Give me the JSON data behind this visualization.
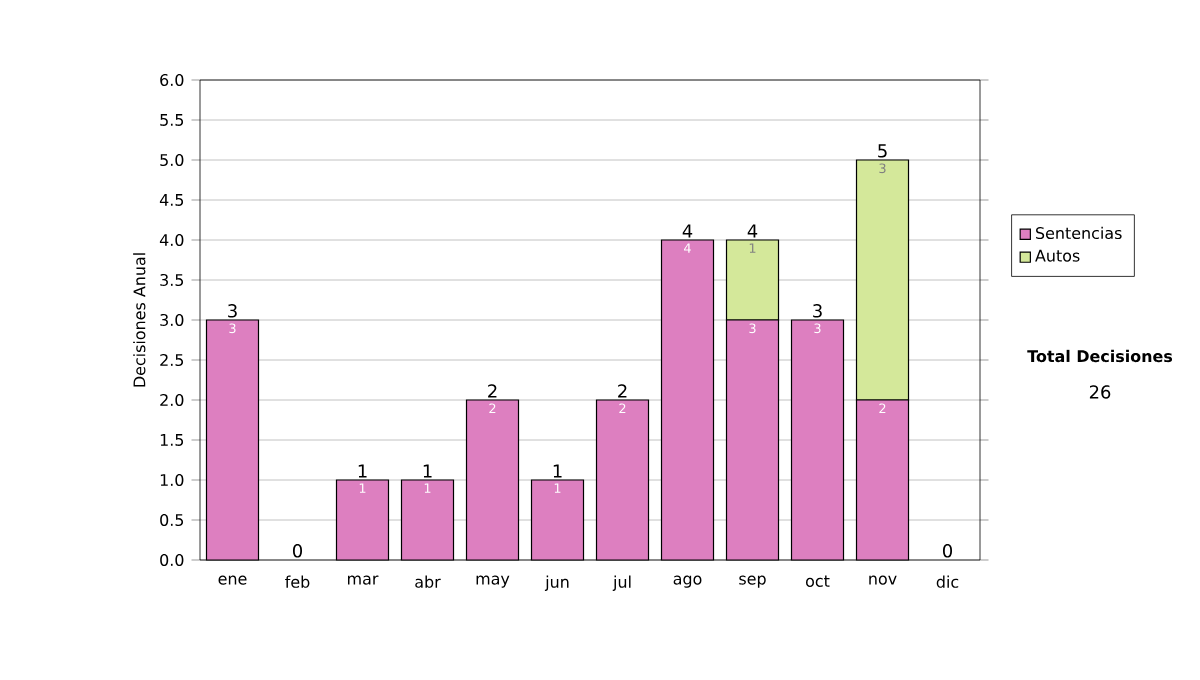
{
  "chart_data": {
    "type": "bar",
    "stacked": true,
    "ylabel": "Decisiones Anual",
    "categories": [
      "ene",
      "feb",
      "mar",
      "abr",
      "may",
      "jun",
      "jul",
      "ago",
      "sep",
      "oct",
      "nov",
      "dic"
    ],
    "series": [
      {
        "name": "Sentencias",
        "color": "#dd7fc0",
        "values": [
          3,
          0,
          1,
          1,
          2,
          1,
          2,
          4,
          3,
          3,
          2,
          0
        ],
        "value_labels": [
          "3",
          null,
          "1",
          "1",
          "2",
          "1",
          "2",
          "4",
          "3",
          "3",
          "2",
          null
        ]
      },
      {
        "name": "Autos",
        "color": "#d4e89a",
        "values": [
          0,
          0,
          0,
          0,
          0,
          0,
          0,
          0,
          1,
          0,
          3,
          0
        ],
        "value_labels": [
          null,
          null,
          null,
          null,
          null,
          null,
          null,
          null,
          "1",
          null,
          "3",
          null
        ]
      }
    ],
    "totals": [
      "3",
      "0",
      "1",
      "1",
      "2",
      "1",
      "2",
      "4",
      "4",
      "3",
      "5",
      "0"
    ],
    "ylim": [
      0,
      6
    ],
    "yticks": [
      {
        "value": 0,
        "label": "0.0"
      },
      {
        "value": 0.5,
        "label": "0.5"
      },
      {
        "value": 1,
        "label": "1.0"
      },
      {
        "value": 1.5,
        "label": "1.5"
      },
      {
        "value": 2,
        "label": "2.0"
      },
      {
        "value": 2.5,
        "label": "2.5"
      },
      {
        "value": 3,
        "label": "3.0"
      },
      {
        "value": 3.5,
        "label": "3.5"
      },
      {
        "value": 4,
        "label": "4.0"
      },
      {
        "value": 4.5,
        "label": "4.5"
      },
      {
        "value": 5,
        "label": "5.0"
      },
      {
        "value": 5.5,
        "label": "5.5"
      },
      {
        "value": 6,
        "label": "6.0"
      }
    ],
    "grid": "y",
    "legend": "right",
    "annotations": [
      "Total Decisiones",
      "26"
    ]
  }
}
